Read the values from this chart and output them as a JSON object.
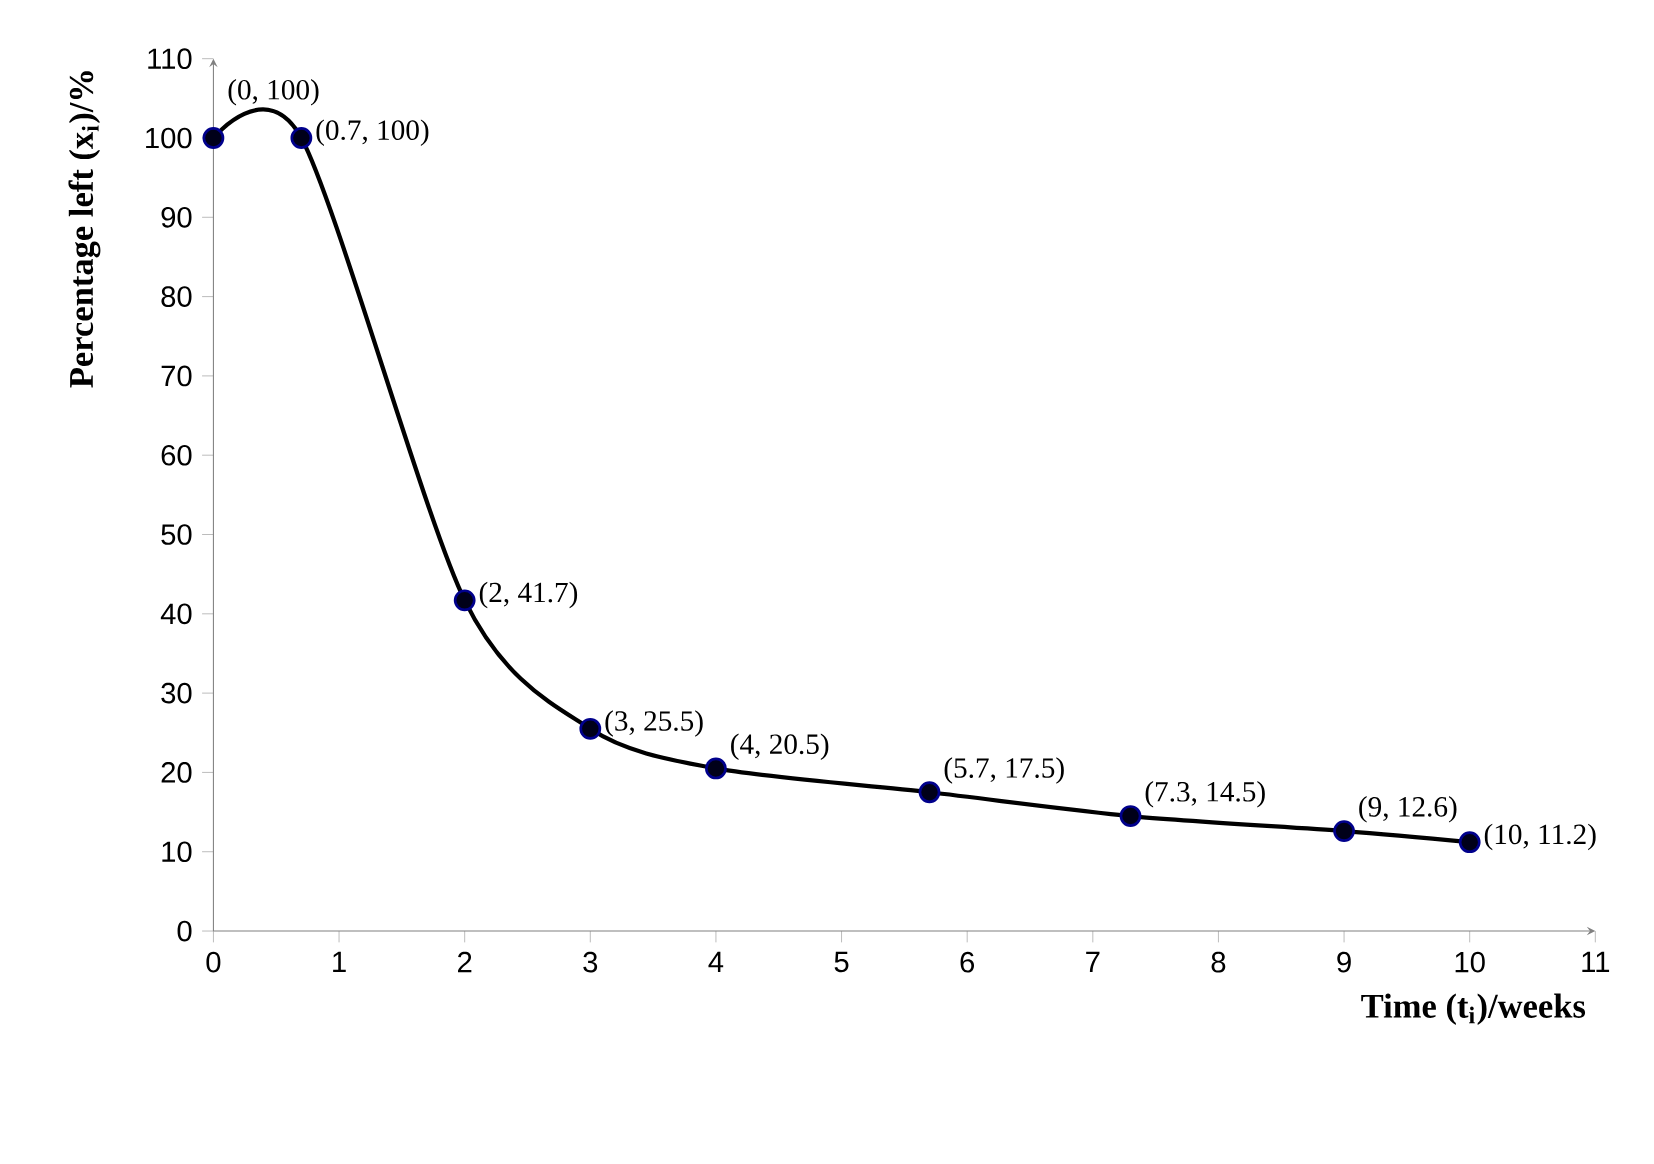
{
  "chart_data": {
    "type": "line",
    "xlabel": "Time (t$_{i}$)/weeks",
    "ylabel": "Percentage left (x$_{i}$)/%",
    "series": [
      {
        "color": "#000000",
        "x": [
          0,
          0.7,
          2,
          3,
          4,
          5.7,
          7.3,
          9,
          10
        ],
        "values": [
          100,
          100,
          41.7,
          25.5,
          20.5,
          17.5,
          14.5,
          12.6,
          11.2
        ],
        "value_labels": [
          "(0, 100)",
          "(0.7, 100)",
          "(2, 41.7)",
          "(3, 25.5)",
          "(4, 20.5)",
          "(5.7, 17.5)",
          "(7.3, 14.5)",
          "(9, 12.6)",
          "(10, 11.2)"
        ]
      }
    ],
    "xlim": [
      0,
      11
    ],
    "ylim": [
      0,
      110
    ],
    "xticks": [
      0,
      1,
      2,
      3,
      4,
      5,
      6,
      7,
      8,
      9,
      10,
      11
    ],
    "yticks": [
      0,
      10,
      20,
      30,
      40,
      50,
      60,
      70,
      80,
      90,
      100,
      110
    ],
    "grid": false,
    "marker": "circle",
    "line_style": "solid"
  }
}
